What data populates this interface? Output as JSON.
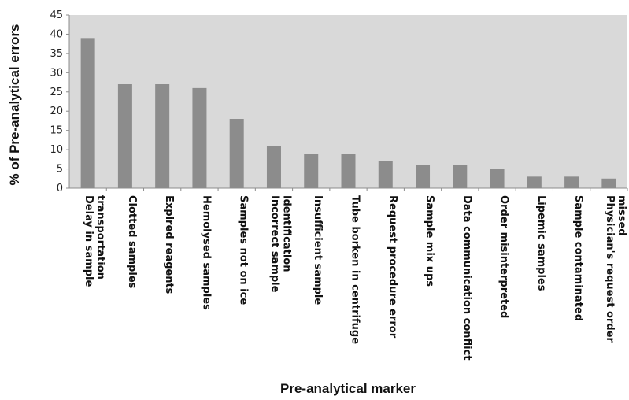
{
  "chart_data": {
    "type": "bar",
    "xlabel": "Pre-analytical marker",
    "ylabel": "% of Pre-analytical errors",
    "ylim": [
      0,
      45
    ],
    "yticks": [
      "0",
      "5",
      "10",
      "15",
      "20",
      "25",
      "30",
      "35",
      "40",
      "45"
    ],
    "grid": false,
    "categories": [
      [
        "Delay in sample",
        "transportation"
      ],
      [
        "Clotted samples"
      ],
      [
        "Expired reagents"
      ],
      [
        "Hemolysed samples"
      ],
      [
        "Samples not on ice"
      ],
      [
        "Incorrect sample",
        "identification"
      ],
      [
        "Insufficient sample"
      ],
      [
        "Tube borken in centrifuge"
      ],
      [
        "Request procedure error"
      ],
      [
        "Sample mix ups"
      ],
      [
        "Data communication conflict"
      ],
      [
        "Order misinterpreted"
      ],
      [
        "Lipemic samples"
      ],
      [
        "Sample contaminated"
      ],
      [
        "Physician's request order",
        "missed"
      ]
    ],
    "values": [
      39,
      27,
      27,
      26,
      18,
      11,
      9,
      9,
      7,
      6,
      6,
      5,
      3,
      3,
      2.5
    ],
    "colors": {
      "plot_background": "#d9d9d9",
      "bar": "#8c8c8c",
      "axis": "#8c8c8c"
    }
  }
}
